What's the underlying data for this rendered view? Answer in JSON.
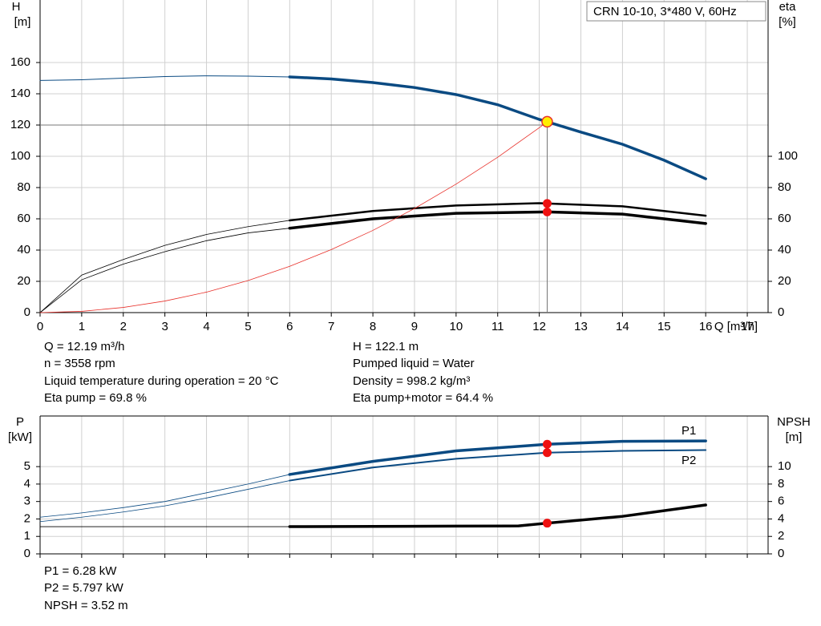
{
  "chart_data": [
    {
      "type": "line",
      "title": "CRN 10-10, 3*480 V, 60Hz",
      "ylabel": [
        "H",
        "[m]"
      ],
      "y2label": [
        "eta",
        "[%]"
      ],
      "xlabel": "Q [m³/h]",
      "xlim": [
        0,
        17.5
      ],
      "xticks": [
        0,
        1,
        2,
        3,
        4,
        5,
        6,
        7,
        8,
        9,
        10,
        11,
        12,
        13,
        14,
        15,
        16,
        17
      ],
      "show_xtick_labels": true,
      "ylim": [
        0,
        200
      ],
      "yticks": [
        0,
        20,
        40,
        60,
        80,
        100,
        120,
        140,
        160
      ],
      "y2lim": [
        0,
        200
      ],
      "y2ticks": [
        0,
        20,
        40,
        60,
        80,
        100
      ],
      "grid": true,
      "series": [
        {
          "x": [
            0,
            1,
            2,
            3,
            4,
            5,
            6
          ],
          "values": [
            148.5,
            149,
            150,
            151,
            151.5,
            151.3,
            150.8
          ],
          "color": "#0a4a82",
          "width": 1
        },
        {
          "x": [
            6,
            7,
            8,
            9,
            10,
            11,
            12,
            12.19,
            13,
            14,
            15,
            16
          ],
          "values": [
            150.8,
            149.5,
            147.2,
            144,
            139.5,
            133,
            123.6,
            122.1,
            115.5,
            107.7,
            97.5,
            85.6
          ],
          "color": "#0a4a82",
          "width": 3.5
        },
        {
          "x": [
            0,
            1,
            2,
            3,
            4,
            5,
            6
          ],
          "values": [
            0,
            24,
            34,
            43,
            50,
            55,
            59
          ],
          "color": "#000000",
          "width": 0.8,
          "axis": "y2"
        },
        {
          "x": [
            6,
            8,
            10,
            12,
            12.19,
            14,
            16
          ],
          "values": [
            59,
            65,
            68.5,
            70,
            69.8,
            68,
            62
          ],
          "color": "#000000",
          "width": 2.5,
          "axis": "y2"
        },
        {
          "x": [
            0,
            1,
            2,
            3,
            4,
            5,
            6
          ],
          "values": [
            0,
            21,
            31,
            39,
            46,
            51,
            54
          ],
          "color": "#000000",
          "width": 0.8,
          "axis": "y2"
        },
        {
          "x": [
            6,
            8,
            10,
            12.19,
            14,
            16
          ],
          "values": [
            54,
            60,
            63.5,
            64.4,
            63,
            57
          ],
          "color": "#000000",
          "width": 3.5,
          "axis": "y2"
        },
        {
          "x": [
            0,
            1,
            2,
            3,
            4,
            5,
            6,
            7,
            8,
            9,
            10,
            11,
            12,
            12.19
          ],
          "values": [
            0,
            0.8,
            3.3,
            7.4,
            13.1,
            20.5,
            29.6,
            40.3,
            52.6,
            66.6,
            82.2,
            99.4,
            118.3,
            122.1
          ],
          "color": "#e8302a",
          "width": 0.8
        }
      ],
      "crosshair": {
        "x": 12.19,
        "y": 120
      },
      "points": [
        {
          "x": 12.19,
          "y": 122.1,
          "color": "#ffee00"
        },
        {
          "x": 12.19,
          "y": 69.8,
          "color": "#ee1111",
          "axis": "y2"
        },
        {
          "x": 12.19,
          "y": 64.4,
          "color": "#ee1111",
          "axis": "y2"
        }
      ],
      "annotations": [
        "Q = 12.19 m³/h",
        "n = 3558 rpm",
        "Liquid temperature during operation = 20 °C",
        "Eta pump = 69.8 %",
        "H = 122.1 m",
        "Pumped liquid = Water",
        "Density = 998.2 kg/m³",
        "Eta pump+motor = 64.4 %"
      ]
    },
    {
      "type": "line",
      "ylabel": [
        "P",
        "[kW]"
      ],
      "y2label": [
        "NPSH",
        "[m]"
      ],
      "xlim": [
        0,
        17.5
      ],
      "xticks": [
        0,
        1,
        2,
        3,
        4,
        5,
        6,
        7,
        8,
        9,
        10,
        11,
        12,
        13,
        14,
        15,
        16,
        17
      ],
      "show_xtick_labels": false,
      "ylim": [
        0,
        7.9
      ],
      "yticks": [
        0,
        1,
        2,
        3,
        4,
        5
      ],
      "y2lim": [
        0,
        15.8
      ],
      "y2ticks": [
        0,
        2,
        4,
        6,
        8,
        10
      ],
      "grid": true,
      "series": [
        {
          "x": [
            0,
            1,
            2,
            3,
            4,
            5,
            6
          ],
          "values": [
            2.1,
            2.35,
            2.65,
            3.0,
            3.5,
            4.0,
            4.55
          ],
          "color": "#0a4a82",
          "width": 0.8
        },
        {
          "name": "P1",
          "x": [
            6,
            8,
            10,
            12.19,
            14,
            16
          ],
          "values": [
            4.55,
            5.3,
            5.9,
            6.28,
            6.45,
            6.47
          ],
          "color": "#0a4a82",
          "width": 3.5
        },
        {
          "x": [
            0,
            1,
            2,
            3,
            4,
            5,
            6
          ],
          "values": [
            1.85,
            2.1,
            2.4,
            2.75,
            3.2,
            3.7,
            4.2
          ],
          "color": "#0a4a82",
          "width": 0.8
        },
        {
          "name": "P2",
          "x": [
            6,
            8,
            10,
            12.19,
            14,
            16
          ],
          "values": [
            4.2,
            4.95,
            5.45,
            5.797,
            5.9,
            5.95
          ],
          "color": "#0a4a82",
          "width": 2
        },
        {
          "x": [
            0,
            6
          ],
          "values": [
            3.12,
            3.12
          ],
          "color": "#000000",
          "width": 0.8,
          "axis": "y2"
        },
        {
          "x": [
            6,
            8,
            10,
            11.5,
            12.19,
            14,
            16
          ],
          "values": [
            3.12,
            3.15,
            3.18,
            3.2,
            3.52,
            4.3,
            5.6
          ],
          "color": "#000000",
          "width": 3.5,
          "axis": "y2"
        }
      ],
      "points": [
        {
          "x": 12.19,
          "y": 6.28,
          "color": "#ee1111"
        },
        {
          "x": 12.19,
          "y": 5.797,
          "color": "#ee1111"
        },
        {
          "x": 12.19,
          "y": 3.52,
          "color": "#ee1111",
          "axis": "y2"
        }
      ],
      "annotations": [
        "P1 = 6.28 kW",
        "P2 = 5.797 kW",
        "NPSH = 3.52 m"
      ]
    }
  ]
}
